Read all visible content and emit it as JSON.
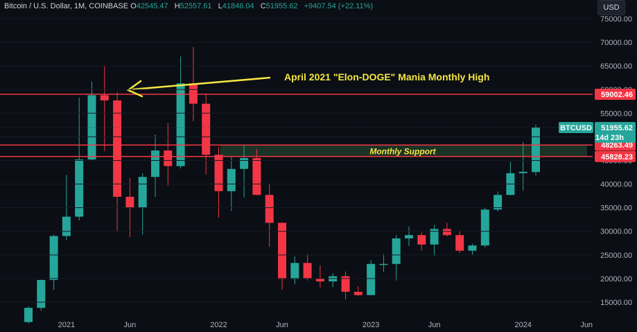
{
  "header": {
    "symbol": "Bitcoin / U.S. Dollar, 1M, COINBASE",
    "open_label": "O",
    "open": "42545.47",
    "high_label": "H",
    "high": "52557.61",
    "low_label": "L",
    "low": "41846.04",
    "close_label": "C",
    "close": "51955.62",
    "change": "+9407.54 (+22.11%)",
    "currency": "USD"
  },
  "colors": {
    "up": "#26a69a",
    "down": "#f23645",
    "annotation_line": "#f5e642",
    "annotation_text": "#f5e642",
    "level_line": "#f23645",
    "support_zone": "#1b3326"
  },
  "annotations": {
    "arrow_label": "April 2021 \"Elon-DOGE\" Mania Monthly High",
    "support_label": "Monthly Support"
  },
  "price_tags": {
    "level_high": "59002.46",
    "ticker": "BTCUSD",
    "last": "51955.62",
    "countdown": "14d 23h",
    "support_top": "48263.49",
    "support_bottom": "45828.23"
  },
  "chart_data": {
    "type": "candlestick",
    "title": "Bitcoin / U.S. Dollar, 1M, COINBASE",
    "y_ticks": [
      "15000.00",
      "20000.00",
      "25000.00",
      "30000.00",
      "35000.00",
      "40000.00",
      "45000.00",
      "50000.00",
      "55000.00",
      "60000.00",
      "65000.00",
      "70000.00",
      "75000.00"
    ],
    "x_ticks": [
      "2021",
      "Jun",
      "2022",
      "Jun",
      "2023",
      "Jun",
      "2024",
      "Jun"
    ],
    "ylim": [
      12000,
      77000
    ],
    "horizontal_levels": [
      59002.46,
      48263.49,
      45828.23
    ],
    "support_zone": [
      45828.23,
      48263.49
    ],
    "candles": [
      {
        "t": "2020-10",
        "o": 10800,
        "h": 14100,
        "l": 10500,
        "c": 13800
      },
      {
        "t": "2020-11",
        "o": 13800,
        "h": 19800,
        "l": 13200,
        "c": 19700
      },
      {
        "t": "2020-12",
        "o": 19700,
        "h": 29300,
        "l": 17600,
        "c": 29000
      },
      {
        "t": "2021-01",
        "o": 29000,
        "h": 41900,
        "l": 28100,
        "c": 33100
      },
      {
        "t": "2021-02",
        "o": 33100,
        "h": 58300,
        "l": 32300,
        "c": 45200
      },
      {
        "t": "2021-03",
        "o": 45200,
        "h": 61700,
        "l": 45000,
        "c": 58800
      },
      {
        "t": "2021-04",
        "o": 58800,
        "h": 65000,
        "l": 47000,
        "c": 57700
      },
      {
        "t": "2021-05",
        "o": 57700,
        "h": 59500,
        "l": 30000,
        "c": 37300
      },
      {
        "t": "2021-06",
        "o": 37300,
        "h": 41300,
        "l": 28800,
        "c": 35000
      },
      {
        "t": "2021-07",
        "o": 35000,
        "h": 42300,
        "l": 29300,
        "c": 41500
      },
      {
        "t": "2021-08",
        "o": 41500,
        "h": 50500,
        "l": 37300,
        "c": 47100
      },
      {
        "t": "2021-09",
        "o": 47100,
        "h": 52900,
        "l": 39600,
        "c": 43800
      },
      {
        "t": "2021-10",
        "o": 43800,
        "h": 67000,
        "l": 43300,
        "c": 61300
      },
      {
        "t": "2021-11",
        "o": 61300,
        "h": 69000,
        "l": 53300,
        "c": 57000
      },
      {
        "t": "2021-12",
        "o": 57000,
        "h": 59100,
        "l": 42000,
        "c": 46200
      },
      {
        "t": "2022-01",
        "o": 46200,
        "h": 47900,
        "l": 32900,
        "c": 38500
      },
      {
        "t": "2022-02",
        "o": 38500,
        "h": 45800,
        "l": 34300,
        "c": 43200
      },
      {
        "t": "2022-03",
        "o": 43200,
        "h": 48200,
        "l": 37200,
        "c": 45500
      },
      {
        "t": "2022-04",
        "o": 45500,
        "h": 47400,
        "l": 37700,
        "c": 37700
      },
      {
        "t": "2022-05",
        "o": 37700,
        "h": 40000,
        "l": 26700,
        "c": 31800
      },
      {
        "t": "2022-06",
        "o": 31800,
        "h": 31900,
        "l": 17600,
        "c": 19900
      },
      {
        "t": "2022-07",
        "o": 19900,
        "h": 24700,
        "l": 18800,
        "c": 23300
      },
      {
        "t": "2022-08",
        "o": 23300,
        "h": 25200,
        "l": 19600,
        "c": 20000
      },
      {
        "t": "2022-09",
        "o": 20000,
        "h": 22800,
        "l": 18100,
        "c": 19400
      },
      {
        "t": "2022-10",
        "o": 19400,
        "h": 21100,
        "l": 18200,
        "c": 20500
      },
      {
        "t": "2022-11",
        "o": 20500,
        "h": 21500,
        "l": 15600,
        "c": 17200
      },
      {
        "t": "2022-12",
        "o": 17200,
        "h": 18400,
        "l": 16300,
        "c": 16500
      },
      {
        "t": "2023-01",
        "o": 16500,
        "h": 23900,
        "l": 16500,
        "c": 23100
      },
      {
        "t": "2023-02",
        "o": 23100,
        "h": 25200,
        "l": 21400,
        "c": 23100
      },
      {
        "t": "2023-03",
        "o": 23100,
        "h": 29200,
        "l": 19600,
        "c": 28500
      },
      {
        "t": "2023-04",
        "o": 28500,
        "h": 31000,
        "l": 26900,
        "c": 29200
      },
      {
        "t": "2023-05",
        "o": 29200,
        "h": 29800,
        "l": 25900,
        "c": 27200
      },
      {
        "t": "2023-06",
        "o": 27200,
        "h": 31400,
        "l": 24800,
        "c": 30500
      },
      {
        "t": "2023-07",
        "o": 30500,
        "h": 31800,
        "l": 28900,
        "c": 29200
      },
      {
        "t": "2023-08",
        "o": 29200,
        "h": 30200,
        "l": 25400,
        "c": 25900
      },
      {
        "t": "2023-09",
        "o": 25900,
        "h": 27400,
        "l": 24900,
        "c": 27000
      },
      {
        "t": "2023-10",
        "o": 27000,
        "h": 35000,
        "l": 26600,
        "c": 34600
      },
      {
        "t": "2023-11",
        "o": 34600,
        "h": 38400,
        "l": 34200,
        "c": 37700
      },
      {
        "t": "2023-12",
        "o": 37700,
        "h": 44700,
        "l": 37600,
        "c": 42300
      },
      {
        "t": "2024-01",
        "o": 42300,
        "h": 48900,
        "l": 38600,
        "c": 42600
      },
      {
        "t": "2024-02",
        "o": 42545.47,
        "h": 52557.61,
        "l": 41846.04,
        "c": 51955.62
      }
    ]
  }
}
